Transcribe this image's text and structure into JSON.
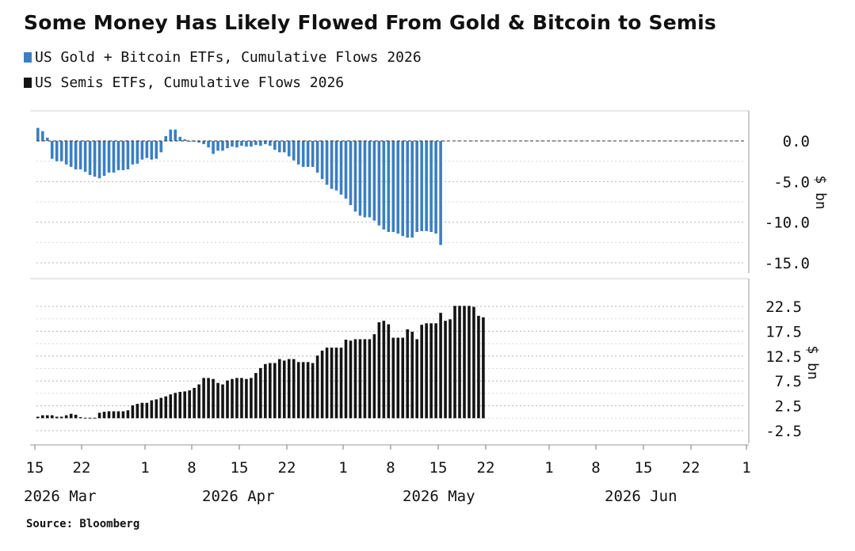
{
  "title": "Some Money Has Likely Flowed From Gold & Bitcoin to Semis",
  "source": "Source: Bloomberg",
  "colors": {
    "blue": "#3a7fc4",
    "black": "#141414",
    "grid": "#b5b5b5"
  },
  "chart_data": [
    {
      "type": "bar",
      "panel": "top",
      "legend_label": "US Gold + Bitcoin ETFs, Cumulative Flows 2026",
      "ylabel": "$ bn",
      "ylim": [
        -15,
        2.5
      ],
      "yticks": [
        0.0,
        -5.0,
        -10.0,
        -15.0
      ],
      "ytick_labels": [
        "0.0",
        "-5.0",
        "-10.0",
        "-15.0"
      ],
      "series": [
        {
          "color": "#3a7fc4",
          "values": [
            1.6,
            1.2,
            0.4,
            -2.2,
            -2.5,
            -2.5,
            -2.9,
            -3.2,
            -3.5,
            -3.5,
            -3.8,
            -4.2,
            -4.4,
            -4.6,
            -4.3,
            -3.9,
            -3.9,
            -3.6,
            -3.6,
            -3.5,
            -2.9,
            -2.8,
            -2.3,
            -2.1,
            -2.3,
            -2.2,
            -1.4,
            0.6,
            1.4,
            1.4,
            0.5,
            0.2,
            0,
            -0.1,
            -0.2,
            -0.4,
            -0.8,
            -1.6,
            -1.2,
            -1.2,
            -0.9,
            -0.7,
            -0.8,
            -0.6,
            -0.7,
            -0.7,
            -0.5,
            -0.6,
            -0.4,
            -0.6,
            -1.1,
            -1.4,
            -1.4,
            -1.9,
            -2.4,
            -2.9,
            -3.2,
            -3.2,
            -3.2,
            -3.9,
            -4.7,
            -5.4,
            -5.9,
            -6.1,
            -6.6,
            -7.1,
            -7.9,
            -8.7,
            -9.2,
            -9.4,
            -9.4,
            -9.8,
            -10.4,
            -10.9,
            -11.2,
            -11.2,
            -11.4,
            -11.7,
            -11.9,
            -11.9,
            -11.2,
            -11.1,
            -11.1,
            -11.2,
            -11.4,
            -12.8
          ]
        }
      ]
    },
    {
      "type": "bar",
      "panel": "bottom",
      "legend_label": "US Semis ETFs, Cumulative Flows 2026",
      "ylabel": "$ bn",
      "ylim": [
        -4.5,
        24.5
      ],
      "yticks": [
        22.5,
        17.5,
        12.5,
        7.5,
        2.5,
        -2.5
      ],
      "ytick_labels": [
        "22.5",
        "17.5",
        "12.5",
        "7.5",
        "2.5",
        "-2.5"
      ],
      "series": [
        {
          "color": "#141414",
          "values": [
            0.3,
            0.6,
            0.6,
            0.6,
            0.3,
            0.3,
            0.6,
            0.9,
            0.7,
            0.2,
            0.1,
            0.1,
            0.1,
            1.1,
            1.3,
            1.4,
            1.4,
            1.4,
            1.4,
            1.6,
            2.6,
            2.9,
            3.1,
            3.1,
            3.6,
            3.8,
            4.1,
            4.4,
            4.8,
            5.1,
            5.3,
            5.4,
            5.6,
            6.1,
            6.8,
            8.1,
            8.1,
            7.9,
            7.1,
            6.8,
            7.6,
            7.9,
            8.1,
            8.1,
            7.9,
            8.1,
            9.1,
            10.1,
            10.9,
            11.1,
            11.1,
            11.9,
            11.6,
            11.9,
            11.9,
            11.3,
            11.3,
            11.3,
            11.1,
            12.6,
            13.6,
            14.2,
            14.2,
            14.2,
            14.2,
            15.8,
            15.6,
            15.9,
            15.9,
            15.9,
            15.9,
            16.9,
            19.3,
            19.6,
            18.9,
            16.2,
            16.2,
            16.2,
            17.9,
            17.4,
            15.9,
            18.8,
            19.1,
            19.1,
            19.1,
            21.2,
            19.6,
            19.9,
            22.6,
            22.6,
            22.6,
            22.6,
            22.4,
            20.6,
            20.3
          ]
        }
      ]
    }
  ],
  "x_axis": {
    "ticks": [
      {
        "label": "15",
        "sub": "2026 Mar"
      },
      {
        "label": "22",
        "sub": ""
      },
      {
        "label": "1",
        "sub": ""
      },
      {
        "label": "8",
        "sub": "2026 Apr"
      },
      {
        "label": "15",
        "sub": ""
      },
      {
        "label": "22",
        "sub": ""
      },
      {
        "label": "1",
        "sub": ""
      },
      {
        "label": "8",
        "sub": "2026 May"
      },
      {
        "label": "15",
        "sub": ""
      },
      {
        "label": "22",
        "sub": ""
      },
      {
        "label": "1",
        "sub": ""
      },
      {
        "label": "8",
        "sub": "2026 Jun"
      },
      {
        "label": "15",
        "sub": ""
      },
      {
        "label": "22",
        "sub": ""
      },
      {
        "label": "1",
        "sub": ""
      }
    ]
  }
}
